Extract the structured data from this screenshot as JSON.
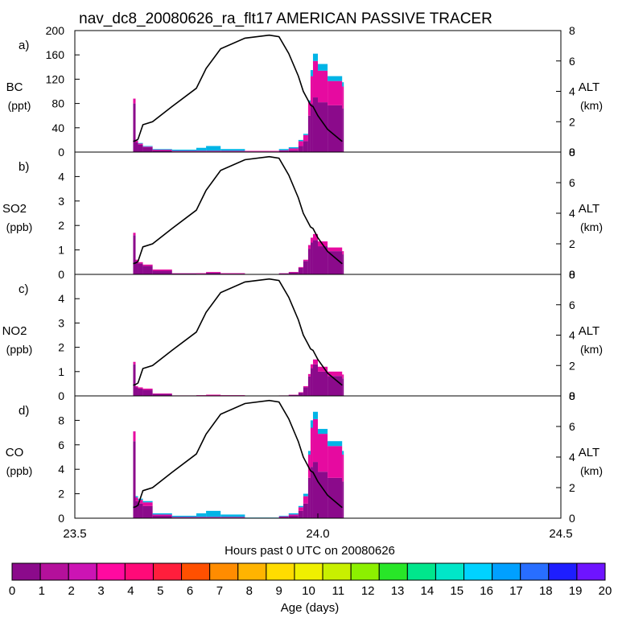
{
  "title": "nav_dc8_20080626_ra_flt17 AMERICAN PASSIVE TRACER",
  "x_axis": {
    "label": "Hours past 0 UTC on 20080626",
    "range": [
      23.5,
      24.5
    ],
    "ticks": [
      "23.5",
      "24.0",
      "24.5"
    ]
  },
  "colorbar": {
    "label": "Age (days)",
    "ticks": [
      "0",
      "1",
      "2",
      "3",
      "4",
      "5",
      "6",
      "7",
      "8",
      "9",
      "10",
      "11",
      "12",
      "13",
      "14",
      "15",
      "16",
      "17",
      "18",
      "19",
      "20"
    ],
    "colors": [
      "#8b0a8b",
      "#b4109b",
      "#cc14b4",
      "#ff0aa0",
      "#ff0a78",
      "#ff1e3c",
      "#ff5000",
      "#ff8c00",
      "#ffb400",
      "#ffdc00",
      "#f0f000",
      "#c8f000",
      "#8cf000",
      "#28e628",
      "#00e68c",
      "#00e6c8",
      "#00d2ff",
      "#00a0ff",
      "#286eff",
      "#1e1eff",
      "#6e14ff"
    ]
  },
  "chart_data": [
    {
      "type": "area",
      "panel": "a)",
      "species": "BC",
      "unit": "(ppt)",
      "ylim": [
        0,
        200
      ],
      "yticks": [
        "0",
        "40",
        "80",
        "120",
        "160",
        "200"
      ],
      "y2label": "ALT",
      "y2unit": "(km)",
      "y2lim": [
        0,
        8
      ],
      "y2ticks": [
        "0",
        "2",
        "4",
        "6",
        "8"
      ],
      "x": [
        23.62,
        23.625,
        23.63,
        23.64,
        23.66,
        23.7,
        23.75,
        23.77,
        23.8,
        23.85,
        23.9,
        23.92,
        23.94,
        23.96,
        23.97,
        23.98,
        23.985,
        23.99,
        24.0,
        24.02,
        24.05
      ],
      "total": [
        88,
        20,
        15,
        10,
        5,
        4,
        7,
        10,
        5,
        2,
        2,
        5,
        8,
        20,
        30,
        85,
        135,
        162,
        145,
        125,
        115
      ],
      "age_groups": [
        {
          "ages": "0-1",
          "values": [
            80,
            16,
            12,
            8,
            3,
            1,
            1,
            1,
            1,
            1,
            1,
            2,
            3,
            10,
            18,
            60,
            80,
            90,
            82,
            77,
            72
          ]
        },
        {
          "ages": "1-4",
          "values": [
            8,
            3,
            2,
            1,
            1,
            1,
            1,
            1,
            1,
            1,
            1,
            1,
            3,
            8,
            10,
            22,
            45,
            60,
            52,
            40,
            36
          ]
        },
        {
          "ages": "5-20",
          "values": [
            0,
            1,
            1,
            1,
            1,
            2,
            5,
            8,
            3,
            0,
            0,
            2,
            2,
            2,
            2,
            3,
            10,
            12,
            11,
            8,
            7
          ]
        }
      ],
      "altitude_km": [
        0.7,
        0.75,
        0.85,
        1.8,
        2.0,
        3.0,
        4.2,
        5.5,
        6.8,
        7.5,
        7.7,
        7.6,
        6.5,
        5.0,
        4.0,
        3.4,
        3.1,
        3.0,
        2.4,
        1.5,
        0.7
      ]
    },
    {
      "type": "area",
      "panel": "b)",
      "species": "SO2",
      "unit": "(ppb)",
      "ylim": [
        0,
        5
      ],
      "yticks": [
        "0",
        "1",
        "2",
        "3",
        "4"
      ],
      "y2label": "ALT",
      "y2unit": "(km)",
      "y2lim": [
        0,
        8
      ],
      "y2ticks": [
        "0",
        "2",
        "4",
        "6",
        "8"
      ],
      "x": [
        23.62,
        23.625,
        23.63,
        23.64,
        23.66,
        23.7,
        23.75,
        23.77,
        23.8,
        23.85,
        23.9,
        23.92,
        23.94,
        23.96,
        23.97,
        23.98,
        23.985,
        23.99,
        24.0,
        24.02,
        24.05
      ],
      "total": [
        1.7,
        0.6,
        0.5,
        0.4,
        0.2,
        0.05,
        0.05,
        0.1,
        0.05,
        0,
        0,
        0.05,
        0.1,
        0.3,
        0.6,
        1.2,
        1.5,
        1.65,
        1.35,
        1.1,
        0.95
      ],
      "age_groups": [
        {
          "ages": "0-1",
          "values": [
            1.6,
            0.55,
            0.45,
            0.35,
            0.15,
            0.04,
            0.03,
            0.07,
            0.03,
            0,
            0,
            0.04,
            0.08,
            0.27,
            0.55,
            1.05,
            1.3,
            1.4,
            1.15,
            0.95,
            0.82
          ]
        },
        {
          "ages": "1-4",
          "values": [
            0.1,
            0.05,
            0.05,
            0.05,
            0.05,
            0.01,
            0.02,
            0.03,
            0.02,
            0,
            0,
            0.01,
            0.02,
            0.03,
            0.05,
            0.15,
            0.2,
            0.25,
            0.2,
            0.15,
            0.13
          ]
        }
      ],
      "altitude_km": [
        0.7,
        0.75,
        0.85,
        1.8,
        2.0,
        3.0,
        4.2,
        5.5,
        6.8,
        7.5,
        7.7,
        7.6,
        6.5,
        5.0,
        4.0,
        3.4,
        3.1,
        3.0,
        2.4,
        1.5,
        0.7
      ]
    },
    {
      "type": "area",
      "panel": "c)",
      "species": "NO2",
      "unit": "(ppb)",
      "ylim": [
        0,
        5
      ],
      "yticks": [
        "0",
        "1",
        "2",
        "3",
        "4"
      ],
      "y2label": "ALT",
      "y2unit": "(km)",
      "y2lim": [
        0,
        8
      ],
      "y2ticks": [
        "0",
        "2",
        "4",
        "6",
        "8"
      ],
      "x": [
        23.62,
        23.625,
        23.63,
        23.64,
        23.66,
        23.7,
        23.75,
        23.77,
        23.8,
        23.85,
        23.9,
        23.92,
        23.94,
        23.96,
        23.97,
        23.98,
        23.985,
        23.99,
        24.0,
        24.02,
        24.05
      ],
      "total": [
        1.4,
        0.4,
        0.35,
        0.3,
        0.1,
        0.02,
        0.03,
        0.05,
        0.03,
        0,
        0,
        0.02,
        0.05,
        0.15,
        0.4,
        0.9,
        1.3,
        1.5,
        1.2,
        1.0,
        0.88
      ],
      "age_groups": [
        {
          "ages": "0-1",
          "values": [
            1.3,
            0.36,
            0.3,
            0.25,
            0.08,
            0.01,
            0.01,
            0.01,
            0.01,
            0,
            0,
            0.01,
            0.04,
            0.13,
            0.36,
            0.8,
            1.15,
            1.3,
            1.0,
            0.82,
            0.72
          ]
        },
        {
          "ages": "1-4",
          "values": [
            0.1,
            0.04,
            0.05,
            0.05,
            0.02,
            0.01,
            0.02,
            0.04,
            0.02,
            0,
            0,
            0.01,
            0.01,
            0.02,
            0.04,
            0.1,
            0.15,
            0.2,
            0.2,
            0.18,
            0.16
          ]
        }
      ],
      "altitude_km": [
        0.7,
        0.75,
        0.85,
        1.8,
        2.0,
        3.0,
        4.2,
        5.5,
        6.8,
        7.5,
        7.7,
        7.6,
        6.5,
        5.0,
        4.0,
        3.4,
        3.1,
        3.0,
        2.4,
        1.5,
        0.7
      ]
    },
    {
      "type": "area",
      "panel": "d)",
      "species": "CO",
      "unit": "(ppb)",
      "ylim": [
        0,
        10
      ],
      "yticks": [
        "0",
        "2",
        "4",
        "6",
        "8"
      ],
      "y2label": "ALT",
      "y2unit": "(km)",
      "y2lim": [
        0,
        8
      ],
      "y2ticks": [
        "0",
        "2",
        "4",
        "6",
        "8"
      ],
      "x": [
        23.62,
        23.625,
        23.63,
        23.64,
        23.66,
        23.7,
        23.75,
        23.77,
        23.8,
        23.85,
        23.9,
        23.92,
        23.94,
        23.96,
        23.97,
        23.98,
        23.985,
        23.99,
        24.0,
        24.02,
        24.05
      ],
      "total": [
        7.1,
        1.8,
        1.6,
        1.4,
        0.4,
        0.2,
        0.4,
        0.6,
        0.3,
        0.05,
        0.05,
        0.2,
        0.4,
        1.0,
        2.0,
        5.5,
        8.0,
        8.7,
        7.3,
        6.3,
        5.5
      ],
      "age_groups": [
        {
          "ages": "0-1",
          "values": [
            6.3,
            1.4,
            1.2,
            1.0,
            0.2,
            0.05,
            0.05,
            0.05,
            0.05,
            0.02,
            0.02,
            0.1,
            0.2,
            0.6,
            1.2,
            3.3,
            4.2,
            4.6,
            3.8,
            3.3,
            3.0
          ]
        },
        {
          "ages": "1-4",
          "values": [
            0.8,
            0.3,
            0.3,
            0.3,
            0.1,
            0.05,
            0.05,
            0.05,
            0.05,
            0.01,
            0.01,
            0.05,
            0.1,
            0.3,
            0.6,
            1.9,
            3.2,
            3.5,
            3.1,
            2.6,
            2.2
          ]
        },
        {
          "ages": "5-20",
          "values": [
            0,
            0.1,
            0.1,
            0.1,
            0.1,
            0.1,
            0.3,
            0.5,
            0.2,
            0.02,
            0.02,
            0.05,
            0.1,
            0.1,
            0.2,
            0.3,
            0.6,
            0.6,
            0.4,
            0.4,
            0.3
          ]
        }
      ],
      "altitude_km": [
        0.7,
        0.75,
        0.85,
        1.8,
        2.0,
        3.0,
        4.2,
        5.5,
        6.8,
        7.5,
        7.7,
        7.6,
        6.5,
        5.0,
        4.0,
        3.4,
        3.1,
        3.0,
        2.4,
        1.5,
        0.7
      ]
    }
  ]
}
